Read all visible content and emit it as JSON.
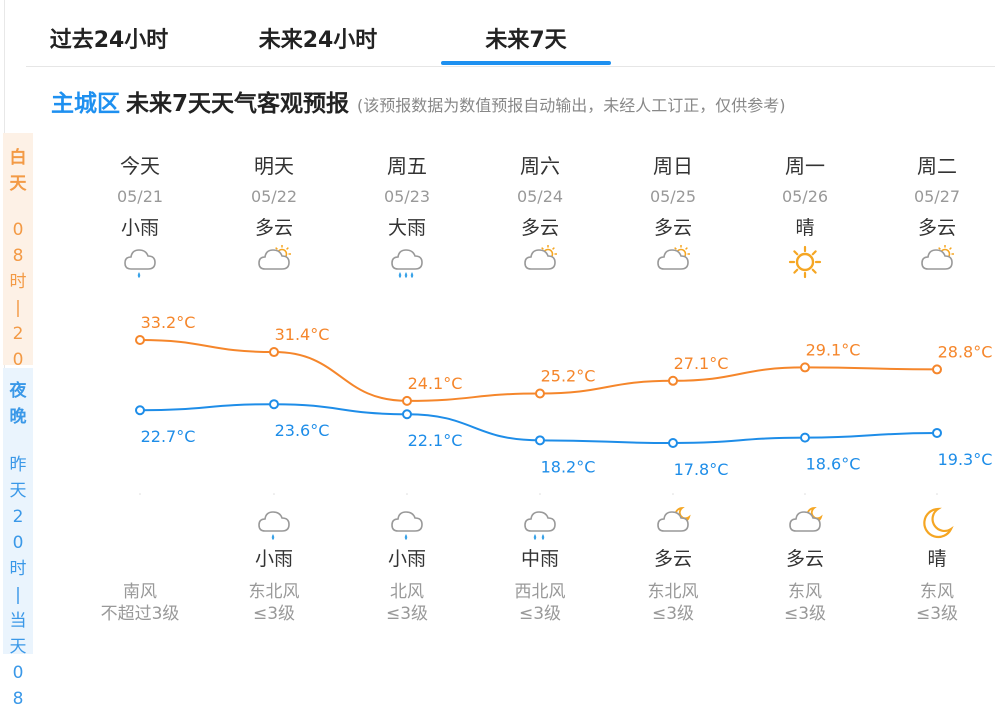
{
  "tabs": [
    {
      "label": "过去24小时"
    },
    {
      "label": "未来24小时"
    },
    {
      "label": "未来7天"
    }
  ],
  "active_tab": "未来7天",
  "heading": {
    "region": "主城区",
    "title": "未来7天天气客观预报",
    "note": "(该预报数据为数值预报自动输出，未经人工订正，仅供参考)"
  },
  "side_labels": {
    "day": {
      "title": "白天",
      "range": "08时|20时"
    },
    "night": {
      "title": "夜晚",
      "range": "昨天20时|当天08"
    }
  },
  "days": [
    {
      "name": "今天",
      "date": "05/21",
      "weather": "小雨",
      "icon": "light-rain-icon",
      "night_weather": "",
      "night_icon": "",
      "wind_dir": "南风",
      "wind_level": "不超过3级"
    },
    {
      "name": "明天",
      "date": "05/22",
      "weather": "多云",
      "icon": "partly-cloudy-day-icon",
      "night_weather": "小雨",
      "night_icon": "light-rain-icon",
      "wind_dir": "东北风",
      "wind_level": "≤3级"
    },
    {
      "name": "周五",
      "date": "05/23",
      "weather": "大雨",
      "icon": "heavy-rain-icon",
      "night_weather": "小雨",
      "night_icon": "light-rain-icon",
      "wind_dir": "北风",
      "wind_level": "≤3级"
    },
    {
      "name": "周六",
      "date": "05/24",
      "weather": "多云",
      "icon": "partly-cloudy-day-icon",
      "night_weather": "中雨",
      "night_icon": "moderate-rain-icon",
      "wind_dir": "西北风",
      "wind_level": "≤3级"
    },
    {
      "name": "周日",
      "date": "05/25",
      "weather": "多云",
      "icon": "partly-cloudy-day-icon",
      "night_weather": "多云",
      "night_icon": "partly-cloudy-night-icon",
      "wind_dir": "东北风",
      "wind_level": "≤3级"
    },
    {
      "name": "周一",
      "date": "05/26",
      "weather": "晴",
      "icon": "sunny-icon",
      "night_weather": "多云",
      "night_icon": "partly-cloudy-night-icon",
      "wind_dir": "东风",
      "wind_level": "≤3级"
    },
    {
      "name": "周二",
      "date": "05/27",
      "weather": "多云",
      "icon": "partly-cloudy-day-icon",
      "night_weather": "晴",
      "night_icon": "clear-night-icon",
      "wind_dir": "东风",
      "wind_level": "≤3级"
    }
  ],
  "chart_data": {
    "type": "line",
    "categories": [
      "05/21",
      "05/22",
      "05/23",
      "05/24",
      "05/25",
      "05/26",
      "05/27"
    ],
    "unit": "°C",
    "series": [
      {
        "values": [
          33.2,
          31.4,
          24.1,
          25.2,
          27.1,
          29.1,
          28.8
        ],
        "color": "#f5862b"
      },
      {
        "values": [
          22.7,
          23.6,
          22.1,
          18.2,
          17.8,
          18.6,
          19.3
        ],
        "color": "#1e8de8"
      }
    ],
    "ylim": [
      15,
      35
    ]
  },
  "colors": {
    "accent": "#1e90f0",
    "day_orange": "#f39a45",
    "night_blue": "#3a98e8",
    "sun": "#f5a623"
  }
}
